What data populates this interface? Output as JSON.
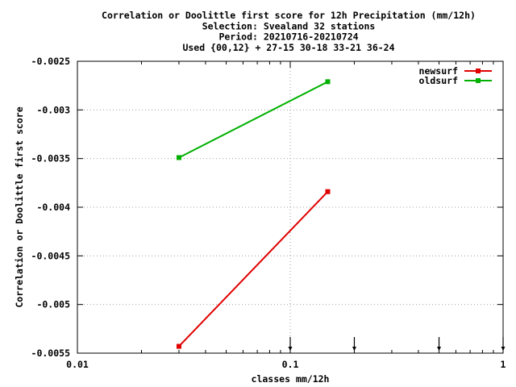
{
  "chart_data": {
    "type": "line",
    "title_lines": [
      "Correlation or Doolittle first score  for 12h Precipitation (mm/12h)",
      "Selection: Svealand     32 stations",
      "Period: 20210716-20210724",
      "Used {00,12} + 27-15 30-18 33-21 36-24"
    ],
    "xlabel": "classes mm/12h",
    "ylabel": "Correlation or Doolittle first score",
    "x_scale": "log",
    "xlim": [
      0.01,
      1
    ],
    "ylim": [
      -0.0055,
      -0.0025
    ],
    "x_ticks": [
      {
        "value": 0.01,
        "label": "0.01"
      },
      {
        "value": 0.1,
        "label": "0.1"
      },
      {
        "value": 1,
        "label": "1"
      }
    ],
    "y_ticks": [
      {
        "value": -0.0025,
        "label": "-0.0025"
      },
      {
        "value": -0.003,
        "label": "-0.003"
      },
      {
        "value": -0.0035,
        "label": "-0.0035"
      },
      {
        "value": -0.004,
        "label": "-0.004"
      },
      {
        "value": -0.0045,
        "label": "-0.0045"
      },
      {
        "value": -0.005,
        "label": "-0.005"
      },
      {
        "value": -0.0055,
        "label": "-0.0055"
      }
    ],
    "grid": {
      "x_major": true,
      "y_major": true
    },
    "legend_position": "top-right",
    "series": [
      {
        "name": "newsurf",
        "color": "#e00000",
        "x": [
          0.03,
          0.15
        ],
        "y": [
          -0.00543,
          -0.00384
        ]
      },
      {
        "name": "oldsurf",
        "color": "#00b000",
        "x": [
          0.03,
          0.15
        ],
        "y": [
          -0.00349,
          -0.00271
        ]
      }
    ],
    "class_markers_x": [
      0.1,
      0.2,
      0.5,
      1.0
    ]
  }
}
